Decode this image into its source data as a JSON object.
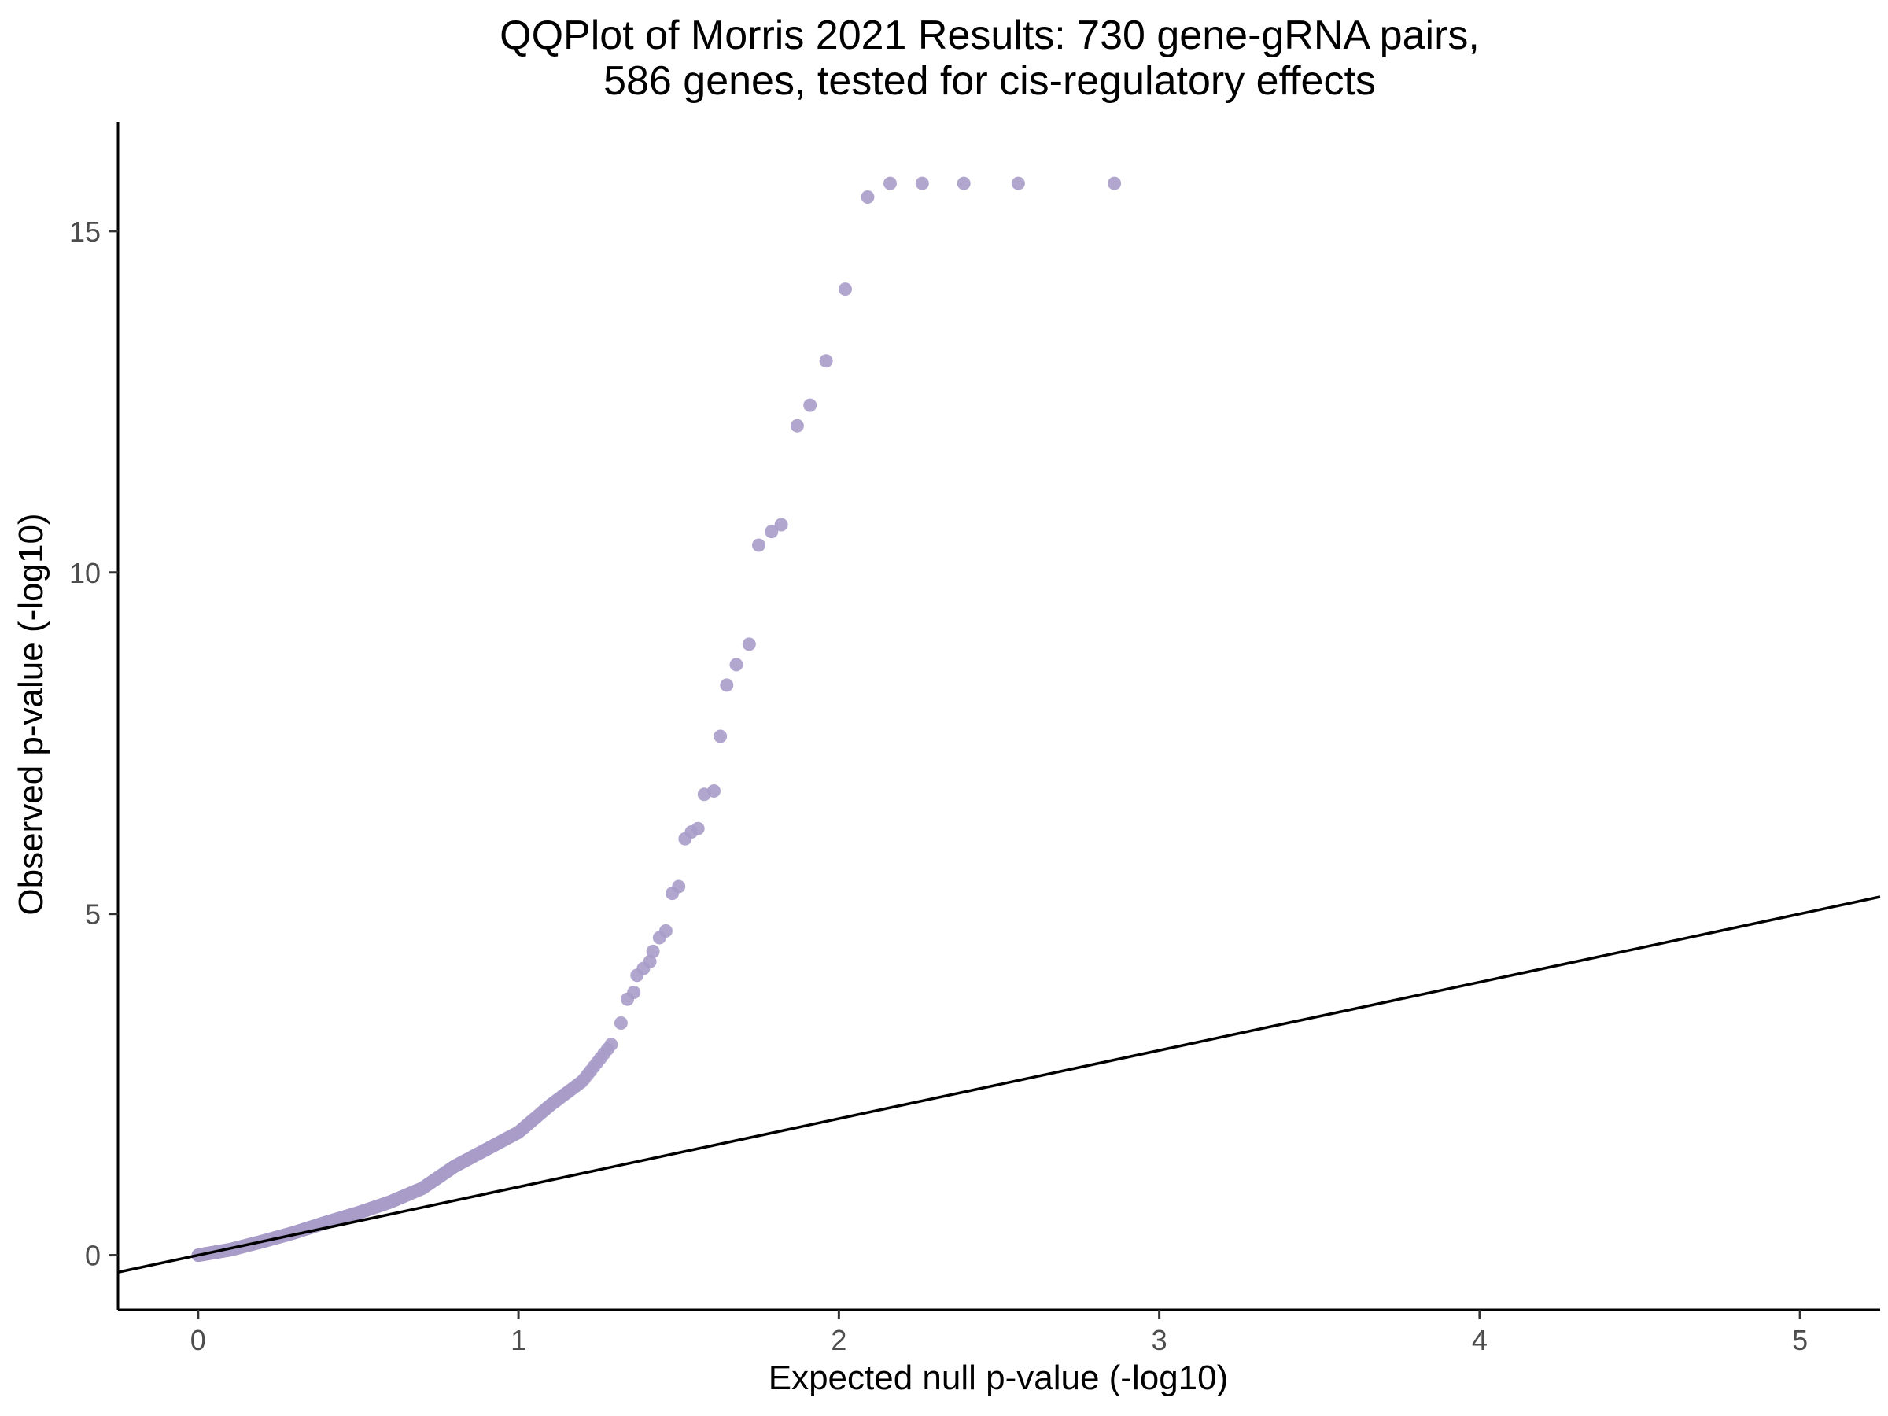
{
  "chart_data": {
    "type": "scatter",
    "title_line1": "QQPlot of Morris 2021 Results: 730 gene-gRNA pairs,",
    "title_line2": "586 genes, tested for cis-regulatory effects",
    "xlabel": "Expected null p-value (-log10)",
    "ylabel": "Observed p-value (-log10)",
    "xlim": [
      -0.25,
      5.25
    ],
    "ylim": [
      -0.8,
      16.6
    ],
    "x_ticks": [
      0,
      1,
      2,
      3,
      4,
      5
    ],
    "y_ticks": [
      0,
      5,
      10,
      15
    ],
    "grid": false,
    "point_color": "#a99cc9",
    "reference_line": {
      "slope": 1,
      "intercept": 0,
      "color": "#000000"
    },
    "n_points": 730,
    "curve_anchor_x": [
      0,
      0.1,
      0.2,
      0.3,
      0.4,
      0.5,
      0.6,
      0.7,
      0.8,
      0.9,
      1.0,
      1.1,
      1.2,
      1.25,
      1.3
    ],
    "curve_anchor_y": [
      0,
      0.08,
      0.2,
      0.33,
      0.48,
      0.62,
      0.78,
      0.98,
      1.3,
      1.55,
      1.8,
      2.2,
      2.55,
      2.85,
      3.15
    ],
    "top_points_x": [
      1.32,
      1.34,
      1.36,
      1.37,
      1.39,
      1.41,
      1.42,
      1.44,
      1.46,
      1.48,
      1.5,
      1.52,
      1.54,
      1.56,
      1.58,
      1.61,
      1.63,
      1.65,
      1.68,
      1.72,
      1.75,
      1.79,
      1.82,
      1.87,
      1.91,
      1.96,
      2.02,
      2.09,
      2.16,
      2.26,
      2.39,
      2.56,
      2.86
    ],
    "top_points_y": [
      3.4,
      3.75,
      3.85,
      4.1,
      4.2,
      4.3,
      4.45,
      4.65,
      4.75,
      5.3,
      5.4,
      6.1,
      6.2,
      6.25,
      6.75,
      6.8,
      7.6,
      8.35,
      8.65,
      8.95,
      10.4,
      10.6,
      10.7,
      12.15,
      12.45,
      13.1,
      14.15,
      15.5,
      15.7,
      15.7,
      15.7,
      15.7,
      15.7
    ]
  }
}
